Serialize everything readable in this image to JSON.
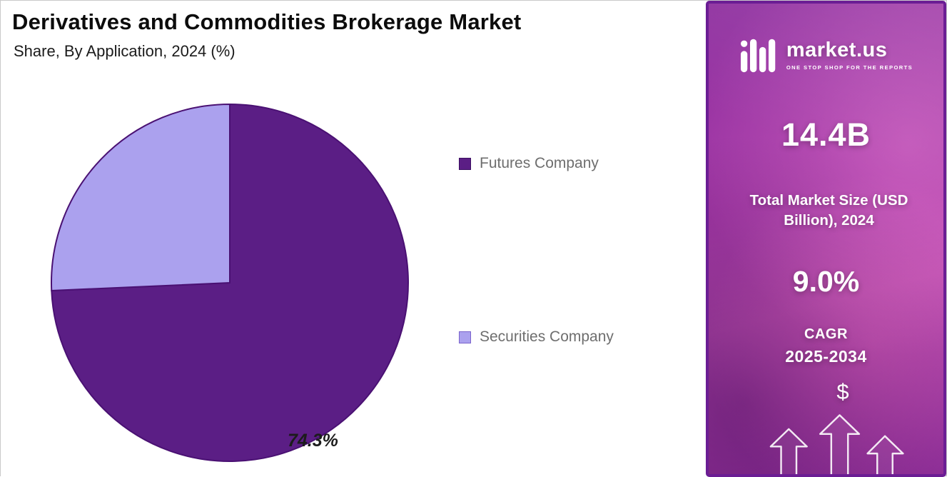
{
  "header": {
    "title": "Derivatives and Commodities Brokerage Market",
    "subtitle": "Share, By Application, 2024 (%)"
  },
  "chart_data": {
    "type": "pie",
    "title": "Derivatives and Commodities Brokerage Market Share, By Application, 2024 (%)",
    "slices": [
      {
        "label": "Futures Company",
        "value": 74.3,
        "color": "#5b1e85",
        "border": "#3c0f63"
      },
      {
        "label": "Securities Company",
        "value": 25.7,
        "color": "#aba1ee",
        "border": "#7a63cc"
      }
    ],
    "data_label": "74.3%",
    "start_angle_deg": 0,
    "direction": "clockwise",
    "stroke_color": "#4a1173",
    "legend_position": "right",
    "background": "#ffffff"
  },
  "sidebar": {
    "logo": {
      "brand": "market.us",
      "tagline": "ONE STOP SHOP FOR THE REPORTS"
    },
    "market_size_value": "14.4B",
    "market_size_label": "Total Market Size (USD Billion), 2024",
    "cagr_value": "9.0%",
    "cagr_label": "CAGR",
    "cagr_period": "2025-2034",
    "dollar_symbol": "$",
    "colors": {
      "panel_purple": "#9b35a3",
      "panel_border": "#6b1d94",
      "text": "#ffffff"
    }
  }
}
